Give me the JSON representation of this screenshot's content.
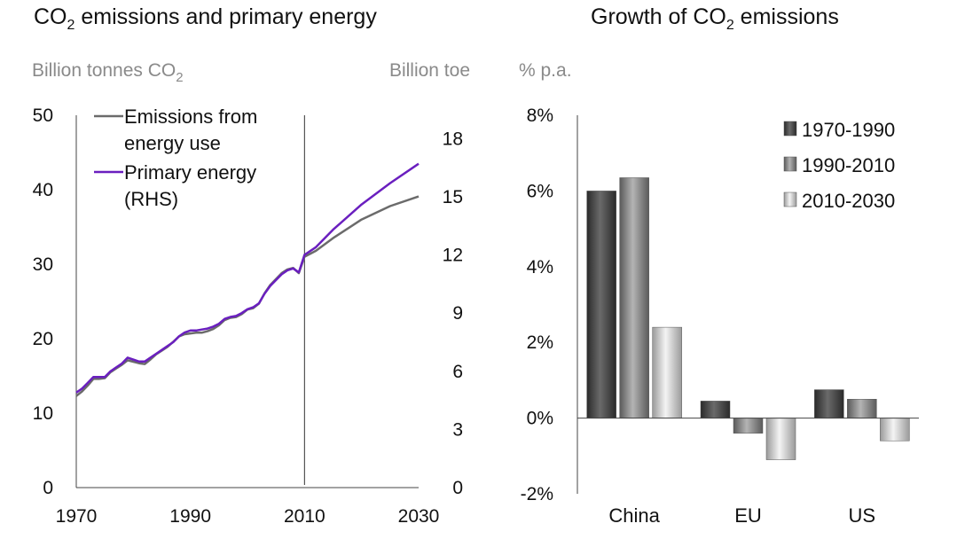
{
  "chart_data": [
    {
      "type": "line",
      "title": "CO",
      "title_sub": "2",
      "title_rest": " emissions and primary energy",
      "ylabel": "Billion tonnes CO",
      "ylabel_sub": "2",
      "y2label": "Billion toe",
      "x_ticks": [
        "1970",
        "1990",
        "2010",
        "2030"
      ],
      "xlim": [
        1970,
        2030
      ],
      "y_ticks": [
        "0",
        "10",
        "20",
        "30",
        "40",
        "50"
      ],
      "ylim": [
        0,
        50
      ],
      "y2_ticks": [
        "0",
        "3",
        "6",
        "9",
        "12",
        "15",
        "18"
      ],
      "y2lim": [
        0,
        19.2
      ],
      "reference_line_x": 2010,
      "legend_position": "top-left",
      "series": [
        {
          "name_lines": [
            "Emissions from",
            "energy use"
          ],
          "axis": "left",
          "color": "#6b6b6b",
          "x": [
            1970,
            1971,
            1972,
            1973,
            1974,
            1975,
            1976,
            1977,
            1978,
            1979,
            1980,
            1981,
            1982,
            1983,
            1984,
            1985,
            1986,
            1987,
            1988,
            1989,
            1990,
            1991,
            1992,
            1993,
            1994,
            1995,
            1996,
            1997,
            1998,
            1999,
            2000,
            2001,
            2002,
            2003,
            2004,
            2005,
            2006,
            2007,
            2008,
            2009,
            2010,
            2012,
            2015,
            2020,
            2025,
            2030
          ],
          "values": [
            12.3,
            12.9,
            13.7,
            14.6,
            14.6,
            14.7,
            15.5,
            16.0,
            16.5,
            17.1,
            16.9,
            16.7,
            16.6,
            17.2,
            17.9,
            18.4,
            18.9,
            19.6,
            20.3,
            20.6,
            20.7,
            20.8,
            20.8,
            21.0,
            21.3,
            21.8,
            22.5,
            22.8,
            22.9,
            23.3,
            23.9,
            24.1,
            24.7,
            26.1,
            27.2,
            28.0,
            28.8,
            29.3,
            29.5,
            28.8,
            31.0,
            31.8,
            33.5,
            36.0,
            37.8,
            39.1
          ]
        },
        {
          "name_lines": [
            "Primary energy",
            "(RHS)"
          ],
          "axis": "right",
          "color": "#6a1fbf",
          "x": [
            1970,
            1971,
            1972,
            1973,
            1974,
            1975,
            1976,
            1977,
            1978,
            1979,
            1980,
            1981,
            1982,
            1983,
            1984,
            1985,
            1986,
            1987,
            1988,
            1989,
            1990,
            1991,
            1992,
            1993,
            1994,
            1995,
            1996,
            1997,
            1998,
            1999,
            2000,
            2001,
            2002,
            2003,
            2004,
            2005,
            2006,
            2007,
            2008,
            2009,
            2010,
            2012,
            2015,
            2020,
            2025,
            2030
          ],
          "values": [
            4.9,
            5.1,
            5.4,
            5.7,
            5.7,
            5.7,
            6.0,
            6.2,
            6.4,
            6.7,
            6.6,
            6.5,
            6.5,
            6.7,
            6.9,
            7.1,
            7.3,
            7.5,
            7.8,
            8.0,
            8.1,
            8.1,
            8.15,
            8.2,
            8.3,
            8.45,
            8.7,
            8.8,
            8.85,
            9.0,
            9.2,
            9.3,
            9.5,
            10.0,
            10.4,
            10.7,
            11.0,
            11.2,
            11.3,
            11.1,
            12.0,
            12.4,
            13.3,
            14.6,
            15.7,
            16.7
          ]
        }
      ]
    },
    {
      "type": "bar",
      "title": "Growth of CO",
      "title_sub": "2",
      "title_rest": " emissions",
      "ylabel": "% p.a.",
      "categories": [
        "China",
        "EU",
        "US"
      ],
      "y_ticks": [
        "8%",
        "6%",
        "4%",
        "2%",
        "0%",
        "-2%"
      ],
      "ylim": [
        -2,
        8
      ],
      "legend_position": "top-right",
      "series": [
        {
          "name": "1970-1990",
          "color": "#3c3c3c",
          "values": [
            6.0,
            0.45,
            0.75
          ]
        },
        {
          "name": "1990-2010",
          "color": "#7a7a7a",
          "values": [
            6.35,
            -0.4,
            0.5
          ]
        },
        {
          "name": "2010-2030",
          "color": "#c9c9c9",
          "values": [
            2.4,
            -1.1,
            -0.6
          ]
        }
      ]
    }
  ]
}
